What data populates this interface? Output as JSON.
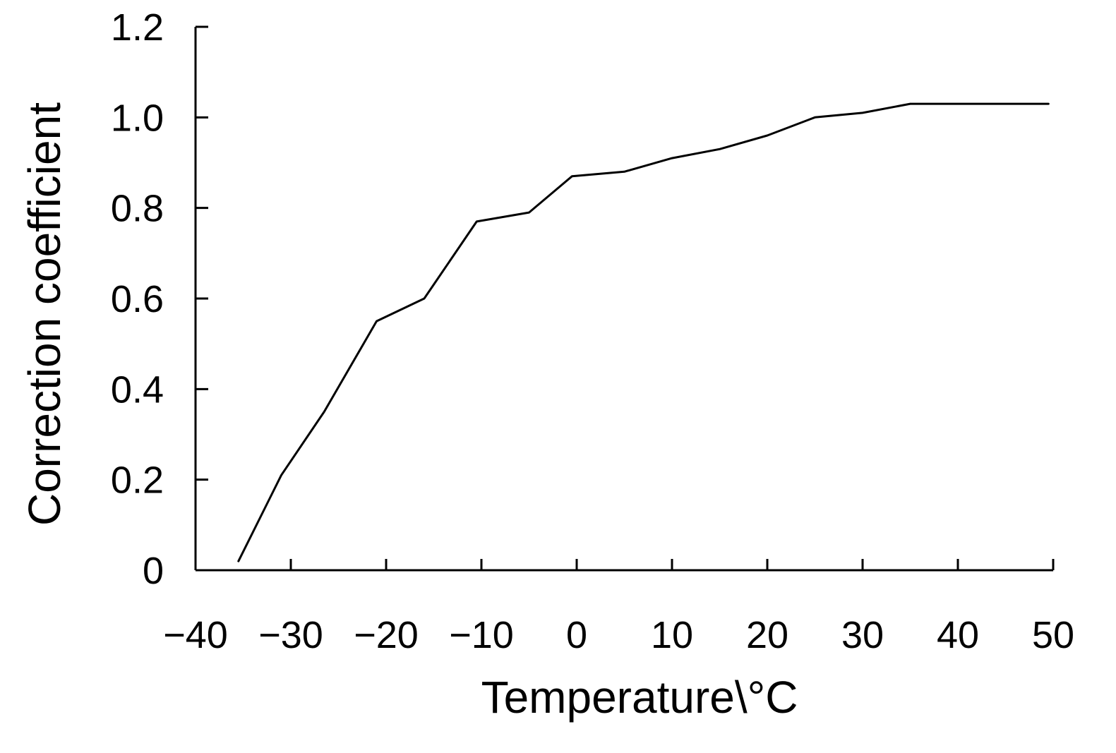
{
  "chart_data": {
    "type": "line",
    "title": "",
    "xlabel": "Temperature\\°C",
    "ylabel": "Correction coefficient",
    "xlim": [
      -40,
      50
    ],
    "ylim": [
      0,
      1.2
    ],
    "x_ticks": [
      -40,
      -30,
      -20,
      -10,
      0,
      10,
      20,
      30,
      40,
      50
    ],
    "x_tick_labels": [
      "−40",
      "−30",
      "−20",
      "−10",
      "0",
      "10",
      "20",
      "30",
      "40",
      "50"
    ],
    "y_ticks": [
      0,
      0.2,
      0.4,
      0.6,
      0.8,
      1.0,
      1.2
    ],
    "y_tick_labels": [
      "0",
      "0.2",
      "0.4",
      "0.6",
      "0.8",
      "1.0",
      "1.2"
    ],
    "grid": false,
    "series": [
      {
        "x": [
          -35.5,
          -31,
          -26.5,
          -21,
          -16,
          -10.5,
          -5,
          -0.5,
          5,
          10,
          15,
          20,
          25,
          30,
          35,
          49.5
        ],
        "y": [
          0.02,
          0.21,
          0.35,
          0.55,
          0.6,
          0.77,
          0.79,
          0.87,
          0.88,
          0.91,
          0.93,
          0.96,
          1.0,
          1.01,
          1.03,
          1.03
        ]
      }
    ],
    "colors": {
      "line": "#000000",
      "axis": "#000000"
    }
  }
}
